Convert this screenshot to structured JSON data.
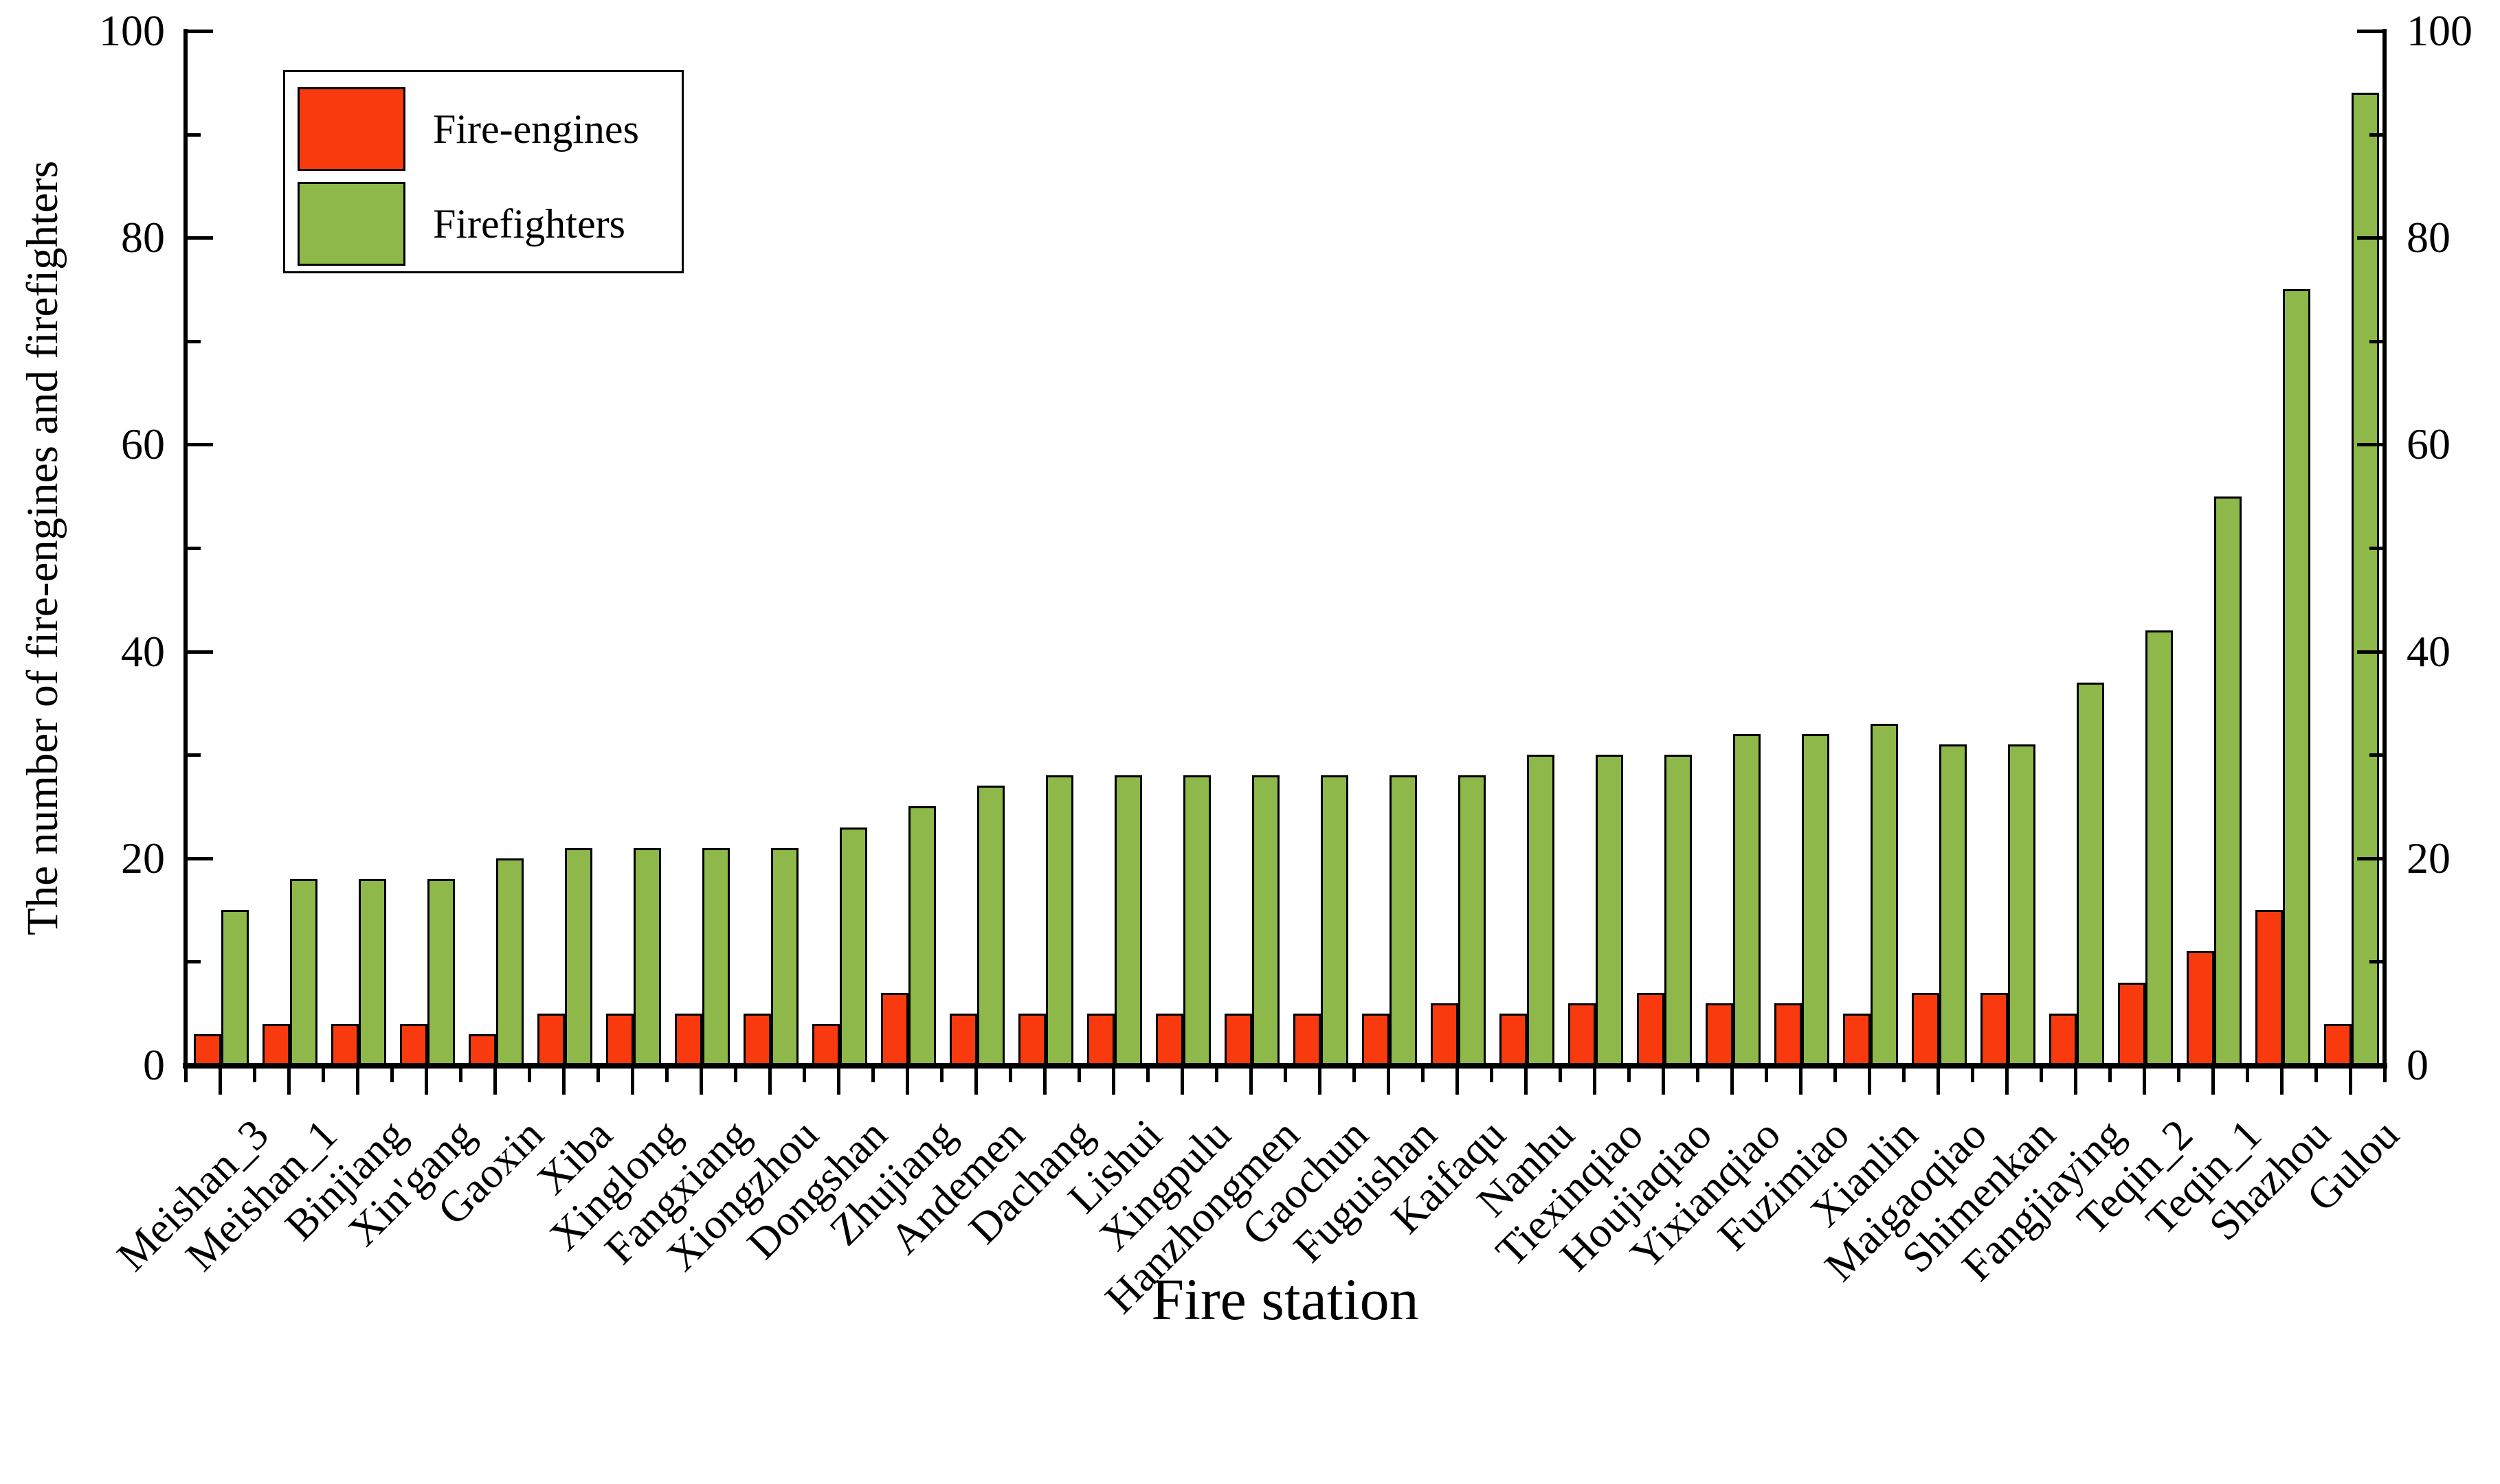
{
  "chart_data": {
    "type": "bar",
    "title": "",
    "xlabel": "Fire station",
    "ylabel": "The number of fire-engines and firefighters",
    "categories": [
      "Meishan_3",
      "Meishan_1",
      "Binjiang",
      "Xin'gang",
      "Gaoxin",
      "Xiba",
      "Xinglong",
      "Fangxiang",
      "Xiongzhou",
      "Dongshan",
      "Zhujiang",
      "Andemen",
      "Dachang",
      "Lishui",
      "Xingpulu",
      "Hanzhongmen",
      "Gaochun",
      "Fuguishan",
      "Kaifaqu",
      "Nanhu",
      "Tiexinqiao",
      "Houjiaqiao",
      "Yixianqiao",
      "Fuzimiao",
      "Xianlin",
      "Maigaoqiao",
      "Shimenkan",
      "Fangjiaying",
      "Teqin_2",
      "Teqin_1",
      "Shazhou",
      "Gulou"
    ],
    "series": [
      {
        "name": "Fire-engines",
        "color": "#f93a0e",
        "values": [
          3,
          4,
          4,
          4,
          3,
          5,
          5,
          5,
          5,
          4,
          7,
          5,
          5,
          5,
          5,
          5,
          5,
          5,
          6,
          5,
          6,
          7,
          6,
          6,
          5,
          7,
          7,
          5,
          8,
          11,
          15,
          4
        ]
      },
      {
        "name": "Firefighters",
        "color": "#8eb849",
        "values": [
          15,
          18,
          18,
          18,
          20,
          21,
          21,
          21,
          21,
          23,
          25,
          27,
          28,
          28,
          28,
          28,
          28,
          28,
          28,
          30,
          30,
          30,
          32,
          32,
          33,
          31,
          31,
          37,
          42,
          55,
          75,
          94
        ]
      }
    ],
    "ylim": [
      0,
      100
    ],
    "yticks_major": [
      0,
      20,
      40,
      60,
      80,
      100
    ],
    "yticks_minor": [
      10,
      30,
      50,
      70,
      90
    ],
    "grid": false,
    "legend_position": "top-left",
    "axis_color": "#000000",
    "axes": {
      "left": true,
      "right": true,
      "bottom": true,
      "top": false
    }
  }
}
